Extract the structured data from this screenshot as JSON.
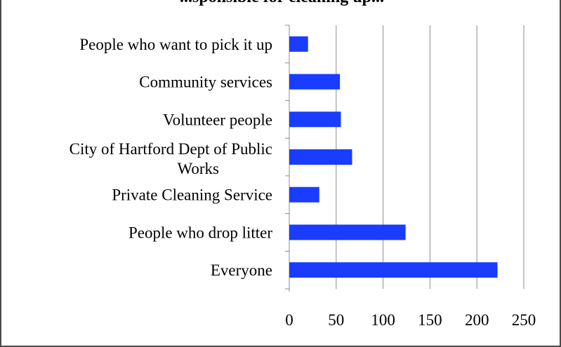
{
  "chart_data": {
    "type": "bar",
    "orientation": "horizontal",
    "title": "...sponsible for cleaning up...",
    "categories": [
      "People who want to pick it up",
      "Community services",
      "Volunteer people",
      "City of Hartford Dept of Public Works",
      "Private Cleaning Service",
      "People who drop litter",
      "Everyone"
    ],
    "values": [
      20,
      54,
      55,
      67,
      32,
      124,
      222
    ],
    "xlim": [
      0,
      250
    ],
    "xticks": [
      "0",
      "50",
      "100",
      "150",
      "200",
      "250"
    ],
    "grid": true,
    "bar_color": "#1a3cff",
    "legend": "none"
  }
}
